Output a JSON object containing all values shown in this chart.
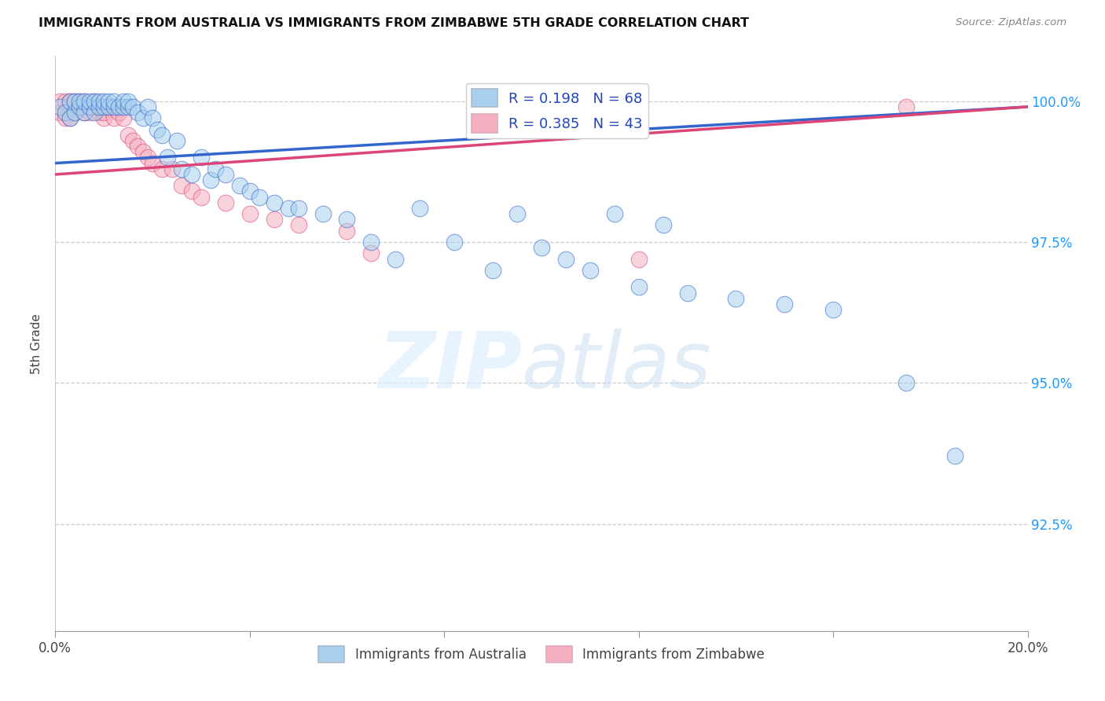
{
  "title": "IMMIGRANTS FROM AUSTRALIA VS IMMIGRANTS FROM ZIMBABWE 5TH GRADE CORRELATION CHART",
  "source": "Source: ZipAtlas.com",
  "ylabel": "5th Grade",
  "yaxis_labels": [
    "100.0%",
    "97.5%",
    "95.0%",
    "92.5%"
  ],
  "yaxis_values": [
    1.0,
    0.975,
    0.95,
    0.925
  ],
  "xmin": 0.0,
  "xmax": 0.2,
  "ymin": 0.906,
  "ymax": 1.008,
  "legend_R_australia": "R = 0.198",
  "legend_N_australia": "N = 68",
  "legend_R_zimbabwe": "R = 0.385",
  "legend_N_zimbabwe": "N = 43",
  "color_australia": "#A8D0EE",
  "color_zimbabwe": "#F4B0C0",
  "line_color_australia": "#3366CC",
  "line_color_zimbabwe": "#DD4477",
  "aus_line_y0": 0.989,
  "aus_line_y1": 0.999,
  "zim_line_y0": 0.987,
  "zim_line_y1": 0.999,
  "aus_x": [
    0.001,
    0.002,
    0.003,
    0.003,
    0.004,
    0.004,
    0.005,
    0.005,
    0.006,
    0.006,
    0.007,
    0.007,
    0.008,
    0.008,
    0.009,
    0.009,
    0.01,
    0.01,
    0.011,
    0.011,
    0.012,
    0.012,
    0.013,
    0.014,
    0.014,
    0.015,
    0.015,
    0.016,
    0.017,
    0.018,
    0.019,
    0.02,
    0.021,
    0.022,
    0.023,
    0.025,
    0.026,
    0.028,
    0.03,
    0.032,
    0.033,
    0.035,
    0.038,
    0.04,
    0.042,
    0.045,
    0.048,
    0.05,
    0.055,
    0.06,
    0.065,
    0.07,
    0.075,
    0.082,
    0.09,
    0.095,
    0.1,
    0.105,
    0.11,
    0.115,
    0.12,
    0.125,
    0.13,
    0.14,
    0.15,
    0.16,
    0.175,
    0.185
  ],
  "aus_y": [
    0.999,
    0.998,
    0.997,
    1.0,
    0.998,
    1.0,
    0.999,
    1.0,
    0.998,
    1.0,
    0.999,
    1.0,
    0.998,
    1.0,
    0.999,
    1.0,
    0.999,
    1.0,
    0.999,
    1.0,
    0.999,
    1.0,
    0.999,
    0.999,
    1.0,
    0.999,
    1.0,
    0.999,
    0.998,
    0.997,
    0.999,
    0.997,
    0.995,
    0.994,
    0.99,
    0.993,
    0.988,
    0.987,
    0.99,
    0.986,
    0.988,
    0.987,
    0.985,
    0.984,
    0.983,
    0.982,
    0.981,
    0.981,
    0.98,
    0.979,
    0.975,
    0.972,
    0.981,
    0.975,
    0.97,
    0.98,
    0.974,
    0.972,
    0.97,
    0.98,
    0.967,
    0.978,
    0.966,
    0.965,
    0.964,
    0.963,
    0.95,
    0.937
  ],
  "zim_x": [
    0.001,
    0.001,
    0.002,
    0.002,
    0.003,
    0.003,
    0.004,
    0.004,
    0.005,
    0.005,
    0.006,
    0.006,
    0.007,
    0.007,
    0.008,
    0.008,
    0.009,
    0.009,
    0.01,
    0.01,
    0.011,
    0.012,
    0.013,
    0.014,
    0.015,
    0.016,
    0.017,
    0.018,
    0.019,
    0.02,
    0.022,
    0.024,
    0.026,
    0.028,
    0.03,
    0.035,
    0.04,
    0.045,
    0.05,
    0.06,
    0.065,
    0.12,
    0.175
  ],
  "zim_y": [
    0.998,
    1.0,
    0.997,
    1.0,
    0.997,
    1.0,
    0.998,
    1.0,
    0.999,
    1.0,
    0.998,
    1.0,
    0.998,
    0.999,
    0.999,
    1.0,
    0.998,
    0.999,
    0.997,
    0.998,
    0.999,
    0.997,
    0.998,
    0.997,
    0.994,
    0.993,
    0.992,
    0.991,
    0.99,
    0.989,
    0.988,
    0.988,
    0.985,
    0.984,
    0.983,
    0.982,
    0.98,
    0.979,
    0.978,
    0.977,
    0.973,
    0.972,
    0.999
  ]
}
